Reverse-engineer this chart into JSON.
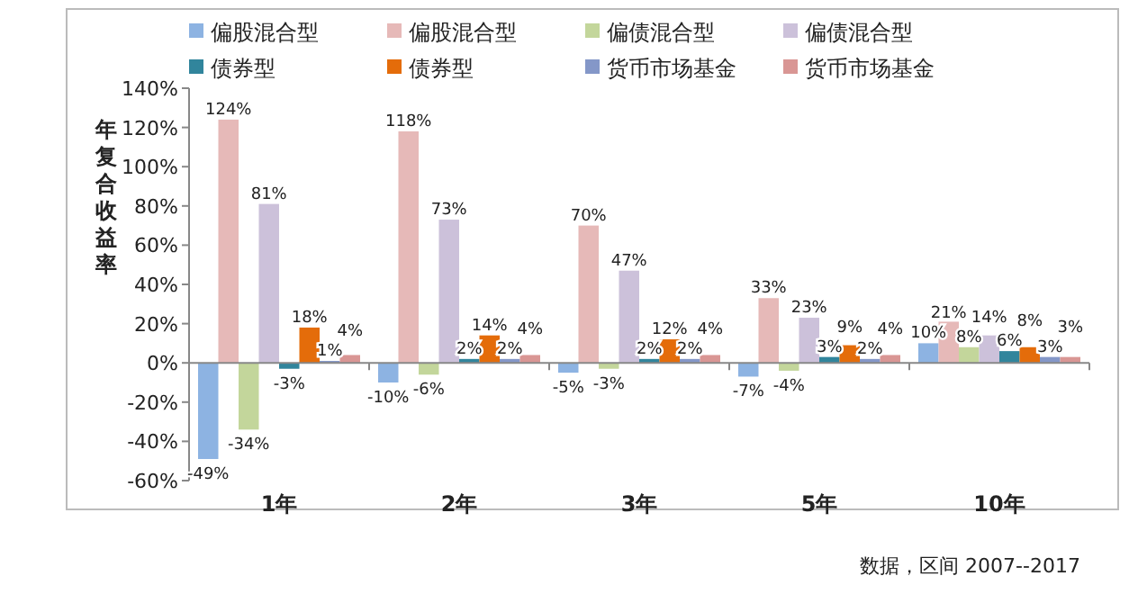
{
  "chart_data": {
    "type": "bar",
    "ylabel": "年复合收益率",
    "categories": [
      "1年",
      "2年",
      "3年",
      "5年",
      "10年"
    ],
    "series": [
      {
        "name": "偏股混合型",
        "color": "#8db3e2",
        "values": [
          -49,
          -10,
          -5,
          -7,
          10
        ],
        "value_labels": [
          "-49%",
          "-10%",
          "-5%",
          "-7%",
          "10%"
        ]
      },
      {
        "name": "偏股混合型",
        "color": "#e6b9b8",
        "values": [
          124,
          118,
          70,
          33,
          21
        ],
        "value_labels": [
          "124%",
          "118%",
          "70%",
          "33%",
          "21%"
        ]
      },
      {
        "name": "偏债混合型",
        "color": "#c3d69b",
        "values": [
          -34,
          -6,
          -3,
          -4,
          8
        ],
        "value_labels": [
          "-34%",
          "-6%",
          "-3%",
          "-4%",
          "8%"
        ]
      },
      {
        "name": "偏债混合型",
        "color": "#ccc1da",
        "values": [
          81,
          73,
          47,
          23,
          14
        ],
        "value_labels": [
          "81%",
          "73%",
          "47%",
          "23%",
          "14%"
        ]
      },
      {
        "name": "债券型",
        "color": "#31859c",
        "values": [
          -3,
          2,
          2,
          3,
          6
        ],
        "value_labels": [
          "-3%",
          "2%",
          "2%",
          "3%",
          "6%"
        ]
      },
      {
        "name": "债券型",
        "color": "#e46c0a",
        "values": [
          18,
          14,
          12,
          9,
          8
        ],
        "value_labels": [
          "18%",
          "14%",
          "12%",
          "9%",
          "8%"
        ]
      },
      {
        "name": "货币市场基金",
        "color": "#8497c8",
        "values": [
          1,
          2,
          2,
          2,
          3
        ],
        "value_labels": [
          "1%",
          "2%",
          "2%",
          "2%",
          "3%"
        ]
      },
      {
        "name": "货币市场基金",
        "color": "#d99694",
        "values": [
          4,
          4,
          4,
          4,
          3
        ],
        "value_labels": [
          "4%",
          "4%",
          "4%",
          "4%",
          "3%"
        ]
      }
    ],
    "ylim": [
      -60,
      140
    ],
    "yticks": [
      {
        "value": -60,
        "label": "-60%"
      },
      {
        "value": -40,
        "label": "-40%"
      },
      {
        "value": -20,
        "label": "-20%"
      },
      {
        "value": 0,
        "label": "0%"
      },
      {
        "value": 20,
        "label": "20%"
      },
      {
        "value": 40,
        "label": "40%"
      },
      {
        "value": 60,
        "label": "60%"
      },
      {
        "value": 80,
        "label": "80%"
      },
      {
        "value": 100,
        "label": "100%"
      },
      {
        "value": 120,
        "label": "120%"
      },
      {
        "value": 140,
        "label": "140%"
      }
    ],
    "legend": "top",
    "annotations": [
      "数据，区间 2007--2017"
    ]
  }
}
